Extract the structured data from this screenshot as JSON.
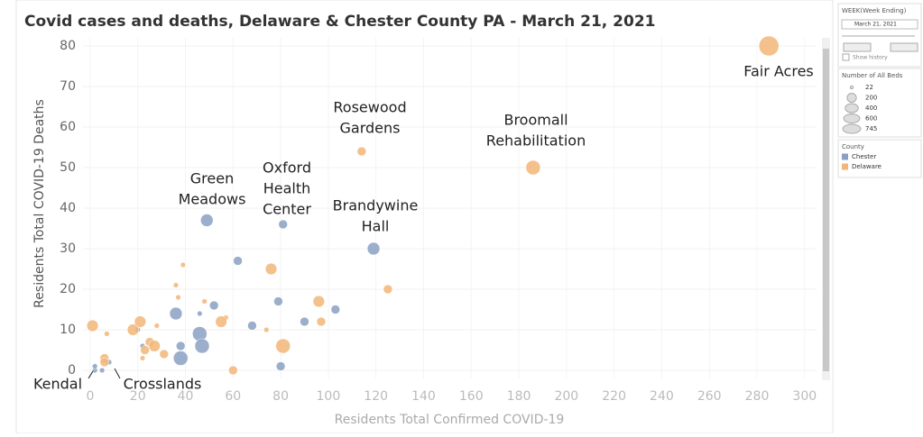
{
  "chart_data": {
    "type": "scatter",
    "title": "Covid cases and deaths, Delaware & Chester County PA - March 21, 2021",
    "x_label": "Residents Total Confirmed COVID-19",
    "y_label": "Residents Total COVID-19 Deaths",
    "xlim": [
      -3,
      305
    ],
    "ylim": [
      -2,
      82
    ],
    "xticks": [
      0,
      20,
      40,
      60,
      80,
      100,
      120,
      140,
      160,
      180,
      200,
      220,
      240,
      260,
      280,
      300
    ],
    "yticks": [
      0,
      10,
      20,
      30,
      40,
      50,
      60,
      70,
      80
    ],
    "series": [
      {
        "name": "Chester",
        "color": "#8aa0c2",
        "x": [
          49,
          81,
          119,
          62,
          36,
          46,
          52,
          79,
          103,
          90,
          68,
          46,
          47,
          38,
          38,
          80,
          22,
          20,
          8,
          5,
          2,
          2
        ],
        "values": [
          37,
          36,
          30,
          27,
          14,
          14,
          16,
          17,
          15,
          12,
          11,
          9,
          6,
          3,
          6,
          1,
          6,
          10,
          2,
          0,
          0,
          1
        ],
        "sizes": [
          300,
          150,
          300,
          150,
          300,
          50,
          150,
          150,
          150,
          150,
          150,
          400,
          400,
          400,
          150,
          150,
          50,
          50,
          50,
          50,
          50,
          50
        ]
      },
      {
        "name": "Delaware",
        "color": "#f2b577",
        "x": [
          285,
          186,
          114,
          125,
          76,
          39,
          36,
          37,
          48,
          57,
          55,
          96,
          97,
          74,
          81,
          60,
          1,
          21,
          18,
          28,
          25,
          27,
          23,
          31,
          22,
          7,
          6,
          6
        ],
        "values": [
          80,
          50,
          54,
          20,
          25,
          26,
          21,
          18,
          17,
          13,
          12,
          17,
          12,
          10,
          6,
          0,
          11,
          12,
          10,
          11,
          7,
          6,
          5,
          4,
          3,
          9,
          3,
          2
        ],
        "sizes": [
          745,
          400,
          150,
          150,
          250,
          50,
          50,
          50,
          50,
          50,
          250,
          250,
          150,
          50,
          400,
          150,
          250,
          250,
          250,
          50,
          150,
          250,
          150,
          150,
          50,
          50,
          150,
          150
        ]
      }
    ],
    "annotations": [
      [
        "Fair Acres"
      ],
      [
        "Broomall",
        "Rehabilitation"
      ],
      [
        "Rosewood",
        "Gardens"
      ],
      [
        "Brandywine",
        "Hall"
      ],
      [
        "Oxford",
        "Health",
        "Center"
      ],
      [
        "Green",
        "Meadows"
      ],
      [
        "Kendal"
      ],
      [
        "Crosslands"
      ]
    ]
  },
  "panel": {
    "week_title": "WEEK(Week Ending)",
    "week_value": "March 21, 2021",
    "show_history": "Show history",
    "size_title": "Number of All Beds",
    "size_legend": [
      22,
      200,
      400,
      600,
      745
    ],
    "color_title": "County"
  }
}
